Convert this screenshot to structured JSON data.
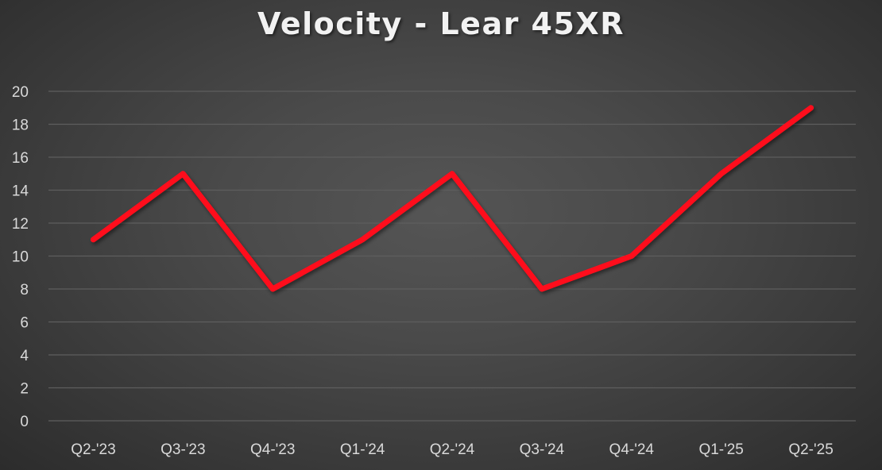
{
  "chart_data": {
    "type": "line",
    "title": "Velocity - Lear 45XR",
    "xlabel": "",
    "ylabel": "",
    "categories": [
      "Q2-'23",
      "Q3-'23",
      "Q4-'23",
      "Q1-'24",
      "Q2-'24",
      "Q3-'24",
      "Q4-'24",
      "Q1-'25",
      "Q2-'25"
    ],
    "series": [
      {
        "name": "Velocity",
        "color": "#ff0d1a",
        "values": [
          11,
          15,
          8,
          11,
          15,
          8,
          10,
          15,
          19
        ]
      }
    ],
    "ylim": [
      0,
      20
    ],
    "yticks": [
      0,
      2,
      4,
      6,
      8,
      10,
      12,
      14,
      16,
      18,
      20
    ],
    "grid": true,
    "legend": "none"
  },
  "colors": {
    "background": "#454545",
    "gridline": "#5e5e5e",
    "line": "#ff0d1a",
    "text": "#d9d9d9"
  }
}
